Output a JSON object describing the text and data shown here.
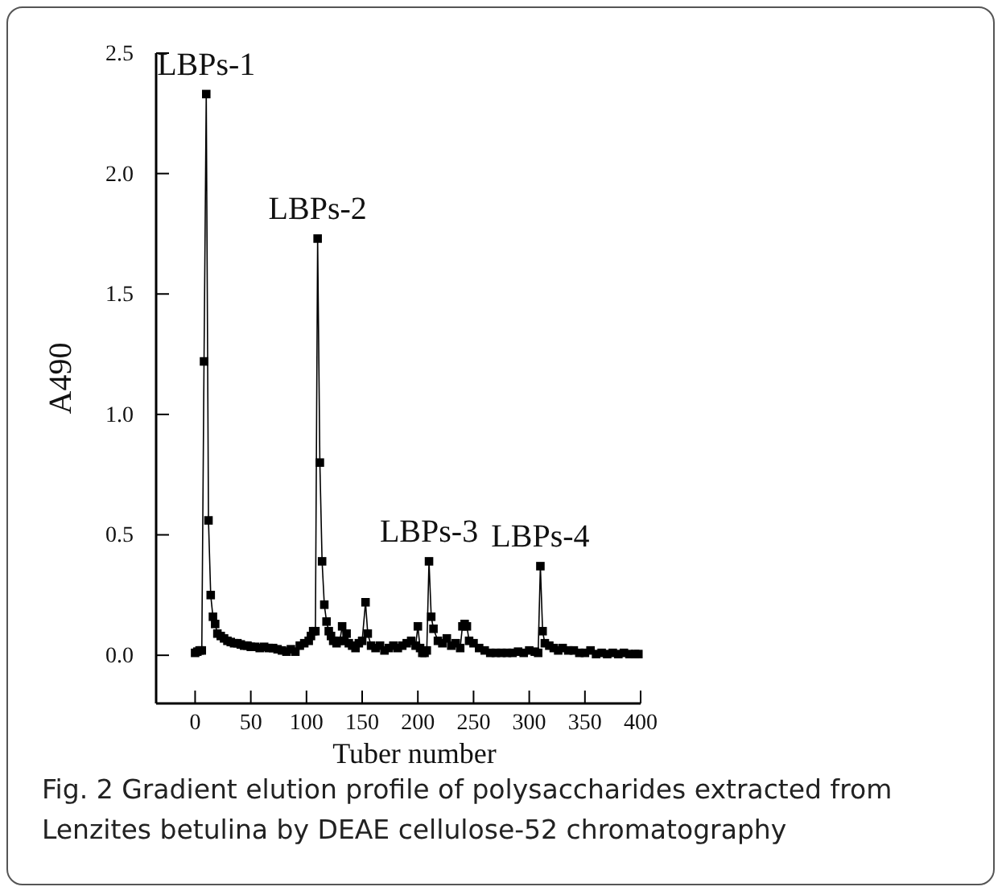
{
  "chart_data": {
    "type": "line",
    "xlabel": "Tuber number",
    "ylabel": "A490",
    "xlim": [
      -35,
      400
    ],
    "ylim": [
      -0.2,
      2.5
    ],
    "xticks": [
      0,
      50,
      100,
      150,
      200,
      250,
      300,
      350,
      400
    ],
    "yticks": [
      {
        "value": 0,
        "label": "0.0"
      },
      {
        "value": 0.5,
        "label": "0.5"
      },
      {
        "value": 1,
        "label": "1.0"
      },
      {
        "value": 1.5,
        "label": "1.5"
      },
      {
        "value": 2,
        "label": "2.0"
      },
      {
        "value": 2.5,
        "label": "2.5"
      }
    ],
    "marker": "square",
    "series": [
      {
        "color": "#000000",
        "x": [
          0,
          2,
          4,
          6,
          8,
          10,
          12,
          14,
          16,
          18,
          20,
          23,
          26,
          29,
          32,
          35,
          38,
          41,
          44,
          47,
          50,
          54,
          58,
          62,
          66,
          70,
          74,
          78,
          82,
          86,
          90,
          94,
          98,
          102,
          104,
          106,
          108,
          110,
          112,
          114,
          116,
          118,
          120,
          122,
          124,
          127,
          130,
          132,
          134,
          136,
          138,
          141,
          144,
          147,
          150,
          153,
          155,
          158,
          162,
          166,
          170,
          174,
          178,
          182,
          186,
          190,
          194,
          198,
          200,
          202,
          204,
          206,
          208,
          210,
          212,
          214,
          218,
          222,
          226,
          230,
          234,
          238,
          240,
          242,
          244,
          246,
          250,
          255,
          260,
          265,
          270,
          275,
          280,
          285,
          290,
          295,
          300,
          305,
          308,
          310,
          312,
          314,
          318,
          322,
          326,
          330,
          335,
          340,
          345,
          350,
          355,
          360,
          365,
          370,
          375,
          380,
          385,
          390,
          395,
          398
        ],
        "values": [
          0.01,
          0.015,
          0.02,
          0.02,
          1.22,
          2.33,
          0.56,
          0.25,
          0.16,
          0.13,
          0.09,
          0.08,
          0.07,
          0.06,
          0.055,
          0.05,
          0.05,
          0.045,
          0.04,
          0.04,
          0.035,
          0.035,
          0.03,
          0.035,
          0.03,
          0.03,
          0.025,
          0.02,
          0.015,
          0.025,
          0.015,
          0.04,
          0.05,
          0.06,
          0.08,
          0.1,
          0.1,
          1.73,
          0.8,
          0.39,
          0.21,
          0.14,
          0.1,
          0.08,
          0.06,
          0.05,
          0.06,
          0.12,
          0.06,
          0.09,
          0.05,
          0.04,
          0.03,
          0.05,
          0.06,
          0.22,
          0.09,
          0.04,
          0.03,
          0.04,
          0.02,
          0.03,
          0.04,
          0.03,
          0.04,
          0.05,
          0.06,
          0.04,
          0.12,
          0.03,
          0.01,
          0.01,
          0.02,
          0.39,
          0.16,
          0.11,
          0.06,
          0.05,
          0.07,
          0.04,
          0.05,
          0.03,
          0.12,
          0.13,
          0.12,
          0.06,
          0.05,
          0.03,
          0.02,
          0.01,
          0.01,
          0.01,
          0.01,
          0.01,
          0.015,
          0.01,
          0.02,
          0.015,
          0.01,
          0.37,
          0.1,
          0.05,
          0.04,
          0.03,
          0.02,
          0.03,
          0.02,
          0.02,
          0.01,
          0.01,
          0.02,
          0.005,
          0.01,
          0.005,
          0.01,
          0.005,
          0.01,
          0.005,
          0.005,
          0.005
        ]
      }
    ],
    "annotations": [
      {
        "text": "LBPs-1",
        "x": 10,
        "y": 2.33
      },
      {
        "text": "LBPs-2",
        "x": 110,
        "y": 1.73
      },
      {
        "text": "LBPs-3",
        "x": 210,
        "y": 0.39
      },
      {
        "text": "LBPs-4",
        "x": 310,
        "y": 0.37
      },
      "Fig. 2  Gradient elution profile of polysaccharides extracted from Lenzites betulina by DEAE cellulose-52 chromatography"
    ]
  }
}
